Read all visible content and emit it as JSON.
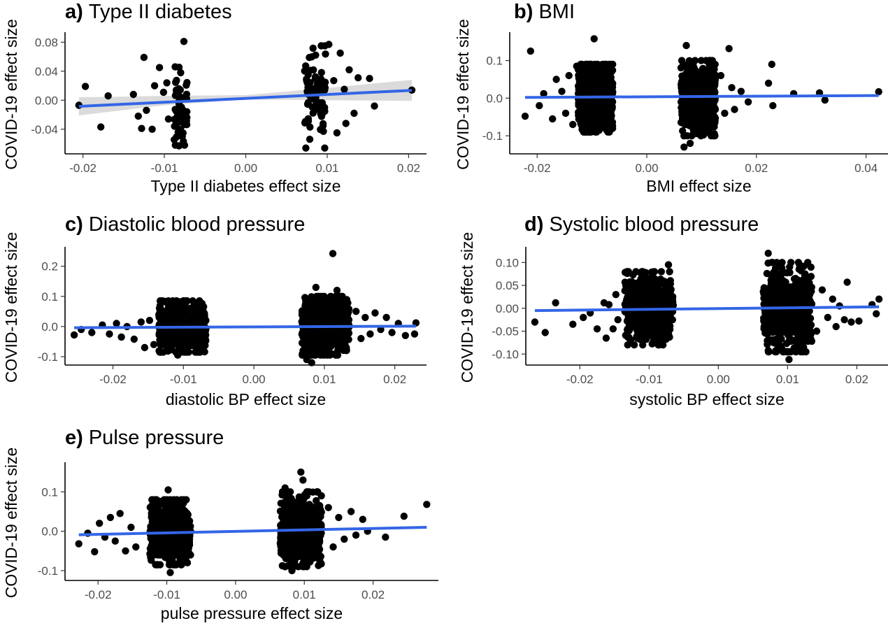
{
  "chart_data": [
    {
      "id": "a",
      "type": "scatter",
      "title_letter": "a)",
      "title_text": "Type II diabetes",
      "xlabel": "Type II diabetes effect size",
      "ylabel": "COVID-19 effect size",
      "xlim": [
        -0.0222,
        0.0222
      ],
      "ylim": [
        -0.074,
        0.09
      ],
      "xticks": [
        -0.02,
        -0.01,
        0.0,
        0.01,
        0.02
      ],
      "xtick_labels": [
        "-0.02",
        "-0.01",
        "0.00",
        "0.01",
        "0.02"
      ],
      "yticks": [
        -0.04,
        0.0,
        0.04,
        0.08
      ],
      "ytick_labels": [
        "-0.04",
        "0.00",
        "0.04",
        "0.08"
      ],
      "trend": {
        "x": [
          -0.0205,
          0.0204
        ],
        "y": [
          -0.0085,
          0.0135
        ]
      },
      "ci_band": {
        "x": [
          -0.0205,
          -0.01,
          0.0,
          0.01,
          0.0204
        ],
        "lower": [
          -0.021,
          -0.007,
          0.001,
          0.0,
          -0.001
        ],
        "upper": [
          0.004,
          0.006,
          0.007,
          0.017,
          0.028
        ]
      },
      "clusters": [
        {
          "xmin": -0.0088,
          "xmax": -0.0072,
          "ymin": -0.062,
          "ymax": 0.046,
          "n": 55
        },
        {
          "xmin": 0.0072,
          "xmax": 0.0098,
          "ymin": -0.066,
          "ymax": 0.075,
          "n": 70
        }
      ],
      "points": [
        [
          -0.0205,
          -0.007
        ],
        [
          -0.0197,
          0.019
        ],
        [
          -0.0178,
          -0.037
        ],
        [
          -0.0169,
          0.006
        ],
        [
          -0.0138,
          0.008
        ],
        [
          -0.0132,
          -0.022
        ],
        [
          -0.0128,
          -0.039
        ],
        [
          -0.0125,
          0.059
        ],
        [
          -0.0122,
          -0.014
        ],
        [
          -0.0115,
          -0.04
        ],
        [
          -0.0112,
          0.02
        ],
        [
          -0.0106,
          0.045
        ],
        [
          -0.0101,
          0.011
        ],
        [
          -0.0097,
          0.024
        ],
        [
          -0.0095,
          -0.026
        ],
        [
          -0.0076,
          0.081
        ],
        [
          -0.0082,
          -0.063
        ],
        [
          -0.0078,
          -0.05
        ],
        [
          0.0097,
          -0.066
        ],
        [
          0.0102,
          0.077
        ],
        [
          0.0108,
          0.027
        ],
        [
          0.0112,
          -0.045
        ],
        [
          0.0116,
          0.065
        ],
        [
          0.0121,
          0.015
        ],
        [
          0.0123,
          -0.032
        ],
        [
          0.0127,
          0.042
        ],
        [
          0.0133,
          -0.018
        ],
        [
          0.0138,
          0.031
        ],
        [
          0.0152,
          0.03
        ],
        [
          0.0158,
          -0.008
        ],
        [
          0.0204,
          0.014
        ]
      ]
    },
    {
      "id": "b",
      "type": "scatter",
      "title_letter": "b)",
      "title_text": "BMI",
      "xlabel": "BMI effect size",
      "ylabel": "COVID-19 effect size",
      "xlim": [
        -0.025,
        0.044
      ],
      "ylim": [
        -0.148,
        0.168
      ],
      "xticks": [
        -0.02,
        0.0,
        0.02,
        0.04
      ],
      "xtick_labels": [
        "-0.02",
        "0.00",
        "0.02",
        "0.04"
      ],
      "yticks": [
        -0.1,
        0.0,
        0.1
      ],
      "ytick_labels": [
        "-0.1",
        "0.0",
        "0.1"
      ],
      "trend": {
        "x": [
          -0.0222,
          0.0423
        ],
        "y": [
          0.002,
          0.007
        ]
      },
      "ci_band": null,
      "clusters": [
        {
          "xmin": -0.0125,
          "xmax": -0.0062,
          "ymin": -0.09,
          "ymax": 0.09,
          "n": 650
        },
        {
          "xmin": 0.0062,
          "xmax": 0.0125,
          "ymin": -0.1,
          "ymax": 0.1,
          "n": 650
        }
      ],
      "points": [
        [
          -0.0222,
          -0.048
        ],
        [
          -0.0212,
          0.125
        ],
        [
          -0.0196,
          -0.02
        ],
        [
          -0.0188,
          0.012
        ],
        [
          -0.0172,
          -0.055
        ],
        [
          -0.0165,
          0.05
        ],
        [
          -0.0155,
          0.018
        ],
        [
          -0.0148,
          -0.04
        ],
        [
          -0.0142,
          0.06
        ],
        [
          -0.0135,
          -0.07
        ],
        [
          -0.0128,
          0.085
        ],
        [
          -0.0096,
          0.158
        ],
        [
          0.0068,
          -0.13
        ],
        [
          0.0072,
          0.14
        ],
        [
          0.0079,
          -0.12
        ],
        [
          0.0135,
          0.06
        ],
        [
          0.0142,
          -0.04
        ],
        [
          0.015,
          0.132
        ],
        [
          0.0155,
          0.028
        ],
        [
          0.016,
          -0.03
        ],
        [
          0.0172,
          0.018
        ],
        [
          0.0185,
          -0.01
        ],
        [
          0.0222,
          0.04
        ],
        [
          0.0228,
          0.09
        ],
        [
          0.023,
          -0.02
        ],
        [
          0.0268,
          0.012
        ],
        [
          0.0315,
          0.014
        ],
        [
          0.0325,
          -0.005
        ],
        [
          0.0423,
          0.017
        ]
      ]
    },
    {
      "id": "c",
      "type": "scatter",
      "title_letter": "c)",
      "title_text": "Diastolic blood pressure",
      "xlabel": "diastolic BP effect size",
      "ylabel": "COVID-19 effect size",
      "xlim": [
        -0.0268,
        0.0245
      ],
      "ylim": [
        -0.128,
        0.255
      ],
      "xticks": [
        -0.02,
        -0.01,
        0.0,
        0.01,
        0.02
      ],
      "xtick_labels": [
        "-0.02",
        "-0.01",
        "0.00",
        "0.01",
        "0.02"
      ],
      "yticks": [
        -0.1,
        0.0,
        0.1,
        0.2
      ],
      "ytick_labels": [
        "-0.1",
        "0.0",
        "0.1",
        "0.2"
      ],
      "trend": {
        "x": [
          -0.0255,
          0.023
        ],
        "y": [
          -0.004,
          0.001
        ]
      },
      "ci_band": null,
      "clusters": [
        {
          "xmin": -0.0135,
          "xmax": -0.0068,
          "ymin": -0.085,
          "ymax": 0.085,
          "n": 600
        },
        {
          "xmin": 0.0068,
          "xmax": 0.0135,
          "ymin": -0.095,
          "ymax": 0.1,
          "n": 600
        }
      ],
      "points": [
        [
          -0.0255,
          -0.028
        ],
        [
          -0.0245,
          -0.01
        ],
        [
          -0.023,
          -0.02
        ],
        [
          -0.0215,
          0.005
        ],
        [
          -0.0205,
          -0.025
        ],
        [
          -0.0195,
          0.01
        ],
        [
          -0.0188,
          -0.035
        ],
        [
          -0.018,
          0.0
        ],
        [
          -0.017,
          -0.042
        ],
        [
          -0.016,
          0.015
        ],
        [
          -0.0155,
          -0.07
        ],
        [
          -0.0148,
          0.02
        ],
        [
          -0.0142,
          -0.06
        ],
        [
          -0.0108,
          -0.095
        ],
        [
          -0.0085,
          0.07
        ],
        [
          0.0075,
          -0.11
        ],
        [
          0.0082,
          -0.12
        ],
        [
          0.0088,
          0.13
        ],
        [
          0.0112,
          0.242
        ],
        [
          0.0118,
          0.12
        ],
        [
          0.0145,
          0.05
        ],
        [
          0.0152,
          -0.04
        ],
        [
          0.0158,
          0.03
        ],
        [
          0.0165,
          -0.025
        ],
        [
          0.0172,
          0.045
        ],
        [
          0.018,
          -0.01
        ],
        [
          0.0188,
          0.03
        ],
        [
          0.0196,
          -0.02
        ],
        [
          0.0205,
          0.01
        ],
        [
          0.0215,
          -0.03
        ],
        [
          0.0228,
          -0.025
        ],
        [
          0.023,
          0.012
        ]
      ]
    },
    {
      "id": "d",
      "type": "scatter",
      "title_letter": "d)",
      "title_text": "Systolic blood pressure",
      "xlabel": "systolic BP effect size",
      "ylabel": "COVID-19 effect size",
      "xlim": [
        -0.0278,
        0.0245
      ],
      "ylim": [
        -0.124,
        0.128
      ],
      "xticks": [
        -0.02,
        -0.01,
        0.0,
        0.01,
        0.02
      ],
      "xtick_labels": [
        "-0.02",
        "-0.01",
        "0.00",
        "0.01",
        "0.02"
      ],
      "yticks": [
        -0.1,
        -0.05,
        0.0,
        0.05,
        0.1
      ],
      "ytick_labels": [
        "-0.10",
        "-0.05",
        "0.00",
        "0.05",
        "0.10"
      ],
      "trend": {
        "x": [
          -0.0265,
          0.0232
        ],
        "y": [
          -0.005,
          0.003
        ]
      },
      "ci_band": null,
      "clusters": [
        {
          "xmin": -0.0135,
          "xmax": -0.0065,
          "ymin": -0.08,
          "ymax": 0.08,
          "n": 550
        },
        {
          "xmin": 0.0065,
          "xmax": 0.0135,
          "ymin": -0.095,
          "ymax": 0.1,
          "n": 550
        }
      ],
      "points": [
        [
          -0.0265,
          -0.03
        ],
        [
          -0.025,
          -0.053
        ],
        [
          -0.0235,
          0.012
        ],
        [
          -0.021,
          -0.035
        ],
        [
          -0.0195,
          -0.02
        ],
        [
          -0.0185,
          -0.01
        ],
        [
          -0.0175,
          -0.045
        ],
        [
          -0.0165,
          0.012
        ],
        [
          -0.0162,
          -0.065
        ],
        [
          -0.0158,
          0.008
        ],
        [
          -0.0152,
          -0.045
        ],
        [
          -0.0148,
          0.03
        ],
        [
          -0.0145,
          -0.025
        ],
        [
          -0.0105,
          0.078
        ],
        [
          -0.0072,
          0.095
        ],
        [
          0.0072,
          0.12
        ],
        [
          0.0082,
          -0.095
        ],
        [
          0.0102,
          -0.112
        ],
        [
          0.0142,
          -0.05
        ],
        [
          0.015,
          0.04
        ],
        [
          0.0158,
          -0.02
        ],
        [
          0.0165,
          0.02
        ],
        [
          0.017,
          -0.04
        ],
        [
          0.0175,
          0.005
        ],
        [
          0.0182,
          -0.025
        ],
        [
          0.0186,
          0.057
        ],
        [
          0.0192,
          -0.03
        ],
        [
          0.0203,
          -0.028
        ],
        [
          0.0222,
          0.008
        ],
        [
          0.0228,
          -0.012
        ],
        [
          0.0232,
          0.02
        ]
      ]
    },
    {
      "id": "e",
      "type": "scatter",
      "title_letter": "e)",
      "title_text": "Pulse pressure",
      "xlabel": "pulse pressure effect size",
      "ylabel": "COVID-19 effect size",
      "xlim": [
        -0.0248,
        0.0295
      ],
      "ylim": [
        -0.125,
        0.168
      ],
      "xticks": [
        -0.02,
        -0.01,
        0.0,
        0.01,
        0.02
      ],
      "xtick_labels": [
        "-0.02",
        "-0.01",
        "0.00",
        "0.01",
        "0.02"
      ],
      "yticks": [
        -0.1,
        0.0,
        0.1
      ],
      "ytick_labels": [
        "-0.1",
        "0.0",
        "0.1"
      ],
      "trend": {
        "x": [
          -0.0228,
          0.0278
        ],
        "y": [
          -0.009,
          0.01
        ]
      },
      "ci_band": null,
      "clusters": [
        {
          "xmin": -0.0125,
          "xmax": -0.0065,
          "ymin": -0.085,
          "ymax": 0.08,
          "n": 450
        },
        {
          "xmin": 0.0065,
          "xmax": 0.0125,
          "ymin": -0.09,
          "ymax": 0.1,
          "n": 500
        }
      ],
      "points": [
        [
          -0.0228,
          -0.032
        ],
        [
          -0.0215,
          -0.005
        ],
        [
          -0.0205,
          -0.052
        ],
        [
          -0.0198,
          0.02
        ],
        [
          -0.019,
          -0.015
        ],
        [
          -0.0182,
          0.035
        ],
        [
          -0.0175,
          -0.025
        ],
        [
          -0.0168,
          0.045
        ],
        [
          -0.016,
          -0.05
        ],
        [
          -0.0152,
          0.01
        ],
        [
          -0.0145,
          -0.04
        ],
        [
          -0.0098,
          0.105
        ],
        [
          -0.0095,
          -0.105
        ],
        [
          -0.007,
          -0.08
        ],
        [
          0.0072,
          0.11
        ],
        [
          0.0082,
          -0.1
        ],
        [
          0.0095,
          0.15
        ],
        [
          0.0098,
          0.13
        ],
        [
          0.0135,
          0.06
        ],
        [
          0.0142,
          -0.04
        ],
        [
          0.015,
          0.035
        ],
        [
          0.0158,
          -0.02
        ],
        [
          0.0168,
          0.05
        ],
        [
          0.0175,
          -0.01
        ],
        [
          0.0185,
          0.03
        ],
        [
          0.0192,
          0.0
        ],
        [
          0.0218,
          -0.015
        ],
        [
          0.0245,
          0.038
        ],
        [
          0.0278,
          0.068
        ]
      ]
    }
  ]
}
